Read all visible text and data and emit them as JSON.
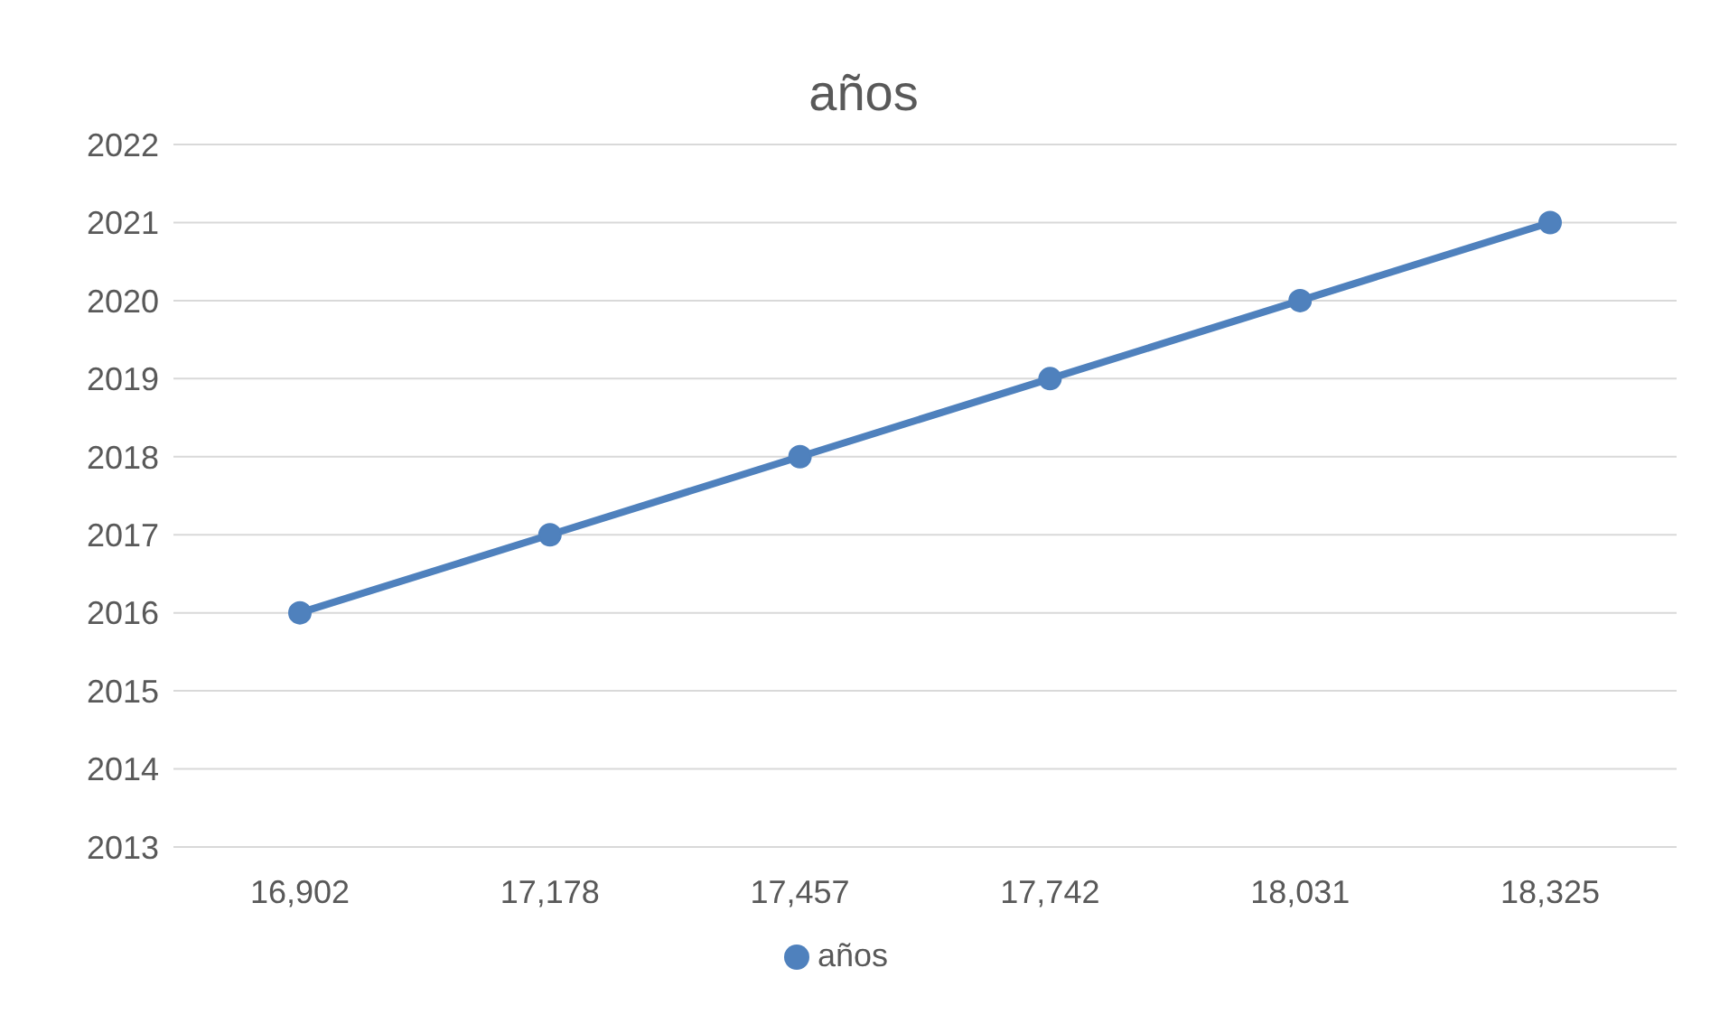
{
  "chart_data": {
    "type": "line",
    "title": "años",
    "categories": [
      "16,902",
      "17,178",
      "17,457",
      "17,742",
      "18,031",
      "18,325"
    ],
    "series": [
      {
        "name": "años",
        "color": "#4f81bd",
        "values": [
          2016,
          2017,
          2018,
          2019,
          2020,
          2021
        ]
      }
    ],
    "ylim": [
      2013,
      2022
    ],
    "yticks": [
      2013,
      2014,
      2015,
      2016,
      2017,
      2018,
      2019,
      2020,
      2021,
      2022
    ],
    "grid": "y",
    "legend": "bottom",
    "marker": "circle",
    "line_style": "solid"
  }
}
